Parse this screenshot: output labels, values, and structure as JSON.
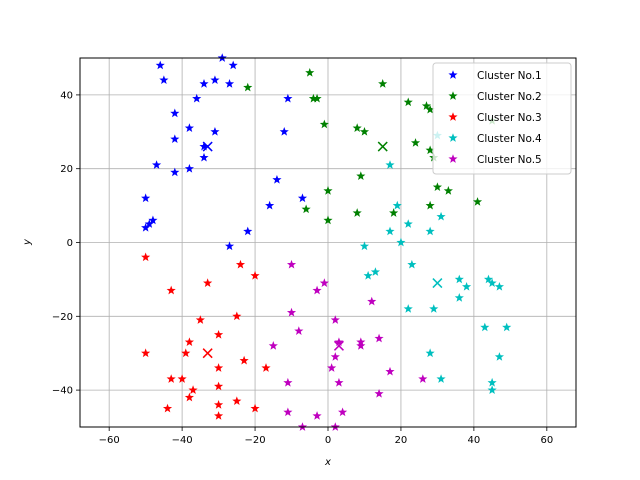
{
  "chart_data": {
    "type": "scatter",
    "title": "",
    "xlabel": "x",
    "ylabel": "y",
    "xlim": [
      -68,
      68
    ],
    "ylim": [
      -50,
      50
    ],
    "xticks": [
      -60,
      -40,
      -20,
      0,
      20,
      40,
      60
    ],
    "yticks": [
      -40,
      -20,
      0,
      20,
      40
    ],
    "grid": true,
    "legend_position": "upper right",
    "series": [
      {
        "name": "Cluster No.1",
        "color": "#0000ff",
        "points": [
          [
            -46,
            48
          ],
          [
            -45,
            44
          ],
          [
            -29,
            50
          ],
          [
            -26,
            48
          ],
          [
            -31,
            44
          ],
          [
            -27,
            43
          ],
          [
            -34,
            43
          ],
          [
            -36,
            39
          ],
          [
            -11,
            39
          ],
          [
            -42,
            35
          ],
          [
            -12,
            30
          ],
          [
            -38,
            31
          ],
          [
            -31,
            30
          ],
          [
            -42,
            28
          ],
          [
            -34,
            26
          ],
          [
            -34,
            23
          ],
          [
            -47,
            21
          ],
          [
            -38,
            20
          ],
          [
            -42,
            19
          ],
          [
            -14,
            17
          ],
          [
            -16,
            10
          ],
          [
            -7,
            12
          ],
          [
            -50,
            12
          ],
          [
            -48,
            6
          ],
          [
            -49,
            5
          ],
          [
            -50,
            4
          ],
          [
            -22,
            3
          ],
          [
            -27,
            -1
          ]
        ],
        "centroid": [
          -33,
          26
        ]
      },
      {
        "name": "Cluster No.2",
        "color": "#008000",
        "points": [
          [
            -5,
            46
          ],
          [
            -22,
            42
          ],
          [
            15,
            43
          ],
          [
            -4,
            39
          ],
          [
            -3,
            39
          ],
          [
            22,
            38
          ],
          [
            27,
            37
          ],
          [
            28,
            36
          ],
          [
            -1,
            32
          ],
          [
            8,
            31
          ],
          [
            10,
            30
          ],
          [
            24,
            27
          ],
          [
            28,
            25
          ],
          [
            29,
            23
          ],
          [
            45,
            33
          ],
          [
            9,
            18
          ],
          [
            30,
            15
          ],
          [
            33,
            14
          ],
          [
            0,
            14
          ],
          [
            41,
            11
          ],
          [
            28,
            10
          ],
          [
            -6,
            9
          ],
          [
            8,
            8
          ],
          [
            18,
            8
          ],
          [
            0,
            6
          ]
        ],
        "centroid": [
          15,
          26
        ]
      },
      {
        "name": "Cluster No.3",
        "color": "#ff0000",
        "points": [
          [
            -50,
            -4
          ],
          [
            -24,
            -6
          ],
          [
            -20,
            -9
          ],
          [
            -33,
            -11
          ],
          [
            -43,
            -13
          ],
          [
            -25,
            -20
          ],
          [
            -35,
            -21
          ],
          [
            -30,
            -25
          ],
          [
            -38,
            -27
          ],
          [
            -50,
            -30
          ],
          [
            -39,
            -30
          ],
          [
            -23,
            -32
          ],
          [
            -30,
            -34
          ],
          [
            -17,
            -34
          ],
          [
            -43,
            -37
          ],
          [
            -40,
            -37
          ],
          [
            -37,
            -40
          ],
          [
            -30,
            -39
          ],
          [
            -38,
            -42
          ],
          [
            -25,
            -43
          ],
          [
            -30,
            -44
          ],
          [
            -20,
            -45
          ],
          [
            -44,
            -45
          ],
          [
            -30,
            -47
          ]
        ],
        "centroid": [
          -33,
          -30
        ]
      },
      {
        "name": "Cluster No.4",
        "color": "#00bfbf",
        "points": [
          [
            17,
            21
          ],
          [
            30,
            29
          ],
          [
            19,
            10
          ],
          [
            22,
            5
          ],
          [
            31,
            7
          ],
          [
            17,
            3
          ],
          [
            28,
            3
          ],
          [
            10,
            -1
          ],
          [
            20,
            0
          ],
          [
            23,
            -6
          ],
          [
            11,
            -9
          ],
          [
            13,
            -8
          ],
          [
            36,
            -10
          ],
          [
            44,
            -10
          ],
          [
            45,
            -11
          ],
          [
            47,
            -12
          ],
          [
            38,
            -12
          ],
          [
            36,
            -15
          ],
          [
            22,
            -18
          ],
          [
            29,
            -18
          ],
          [
            43,
            -23
          ],
          [
            49,
            -23
          ],
          [
            28,
            -30
          ],
          [
            47,
            -31
          ],
          [
            31,
            -37
          ],
          [
            45,
            -38
          ],
          [
            45,
            -40
          ]
        ],
        "centroid": [
          30,
          -11
        ]
      },
      {
        "name": "Cluster No.5",
        "color": "#bf00bf",
        "points": [
          [
            -10,
            -6
          ],
          [
            -1,
            -11
          ],
          [
            -3,
            -13
          ],
          [
            -10,
            -19
          ],
          [
            2,
            -21
          ],
          [
            12,
            -16
          ],
          [
            -8,
            -24
          ],
          [
            3,
            -27
          ],
          [
            9,
            -27
          ],
          [
            14,
            -26
          ],
          [
            -15,
            -28
          ],
          [
            2,
            -31
          ],
          [
            9,
            -28
          ],
          [
            -11,
            -38
          ],
          [
            3,
            -38
          ],
          [
            17,
            -35
          ],
          [
            1,
            -34
          ],
          [
            26,
            -37
          ],
          [
            -3,
            -47
          ],
          [
            4,
            -46
          ],
          [
            -11,
            -46
          ],
          [
            14,
            -41
          ],
          [
            -7,
            -50
          ],
          [
            2,
            -50
          ]
        ],
        "centroid": [
          3,
          -28
        ]
      }
    ]
  }
}
